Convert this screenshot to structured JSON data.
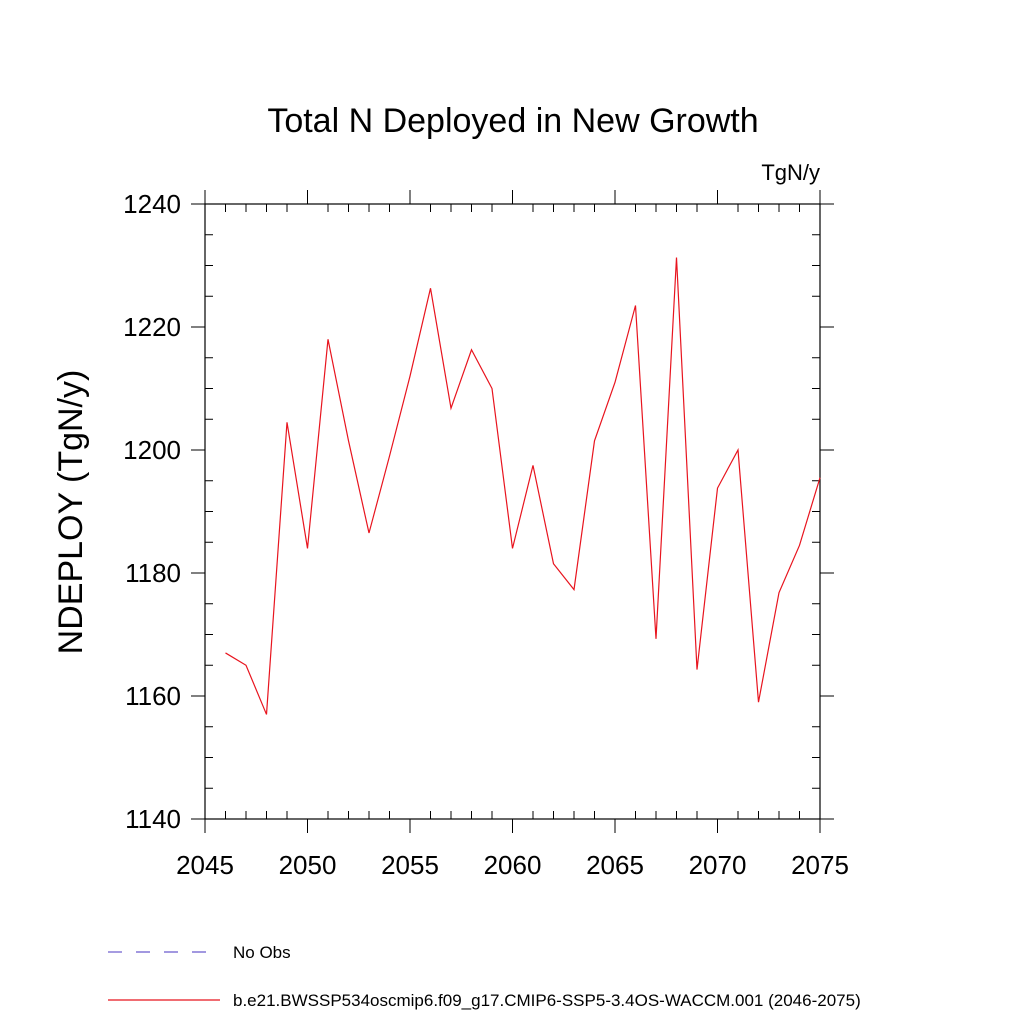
{
  "chart_data": {
    "type": "line",
    "title": "Total N Deployed in New Growth",
    "units_label": "TgN/y",
    "ylabel": "NDEPLOY  (TgN/y)",
    "xlabel": "",
    "xlim": [
      2045,
      2075
    ],
    "ylim": [
      1140,
      1240
    ],
    "xticks": [
      2045,
      2050,
      2055,
      2060,
      2065,
      2070,
      2075
    ],
    "yticks": [
      1140,
      1160,
      1180,
      1200,
      1220,
      1240
    ],
    "grid": false,
    "legend_position": "bottom-left",
    "series": [
      {
        "name": "No Obs",
        "color": "#6a5acd",
        "dash": true,
        "x": [],
        "y": []
      },
      {
        "name": "b.e21.BWSSP534oscmip6.f09_g17.CMIP6-SSP5-3.4OS-WACCM.001 (2046-2075)",
        "color": "#e8141e",
        "dash": false,
        "x": [
          2046,
          2047,
          2048,
          2049,
          2050,
          2051,
          2052,
          2053,
          2054,
          2055,
          2056,
          2057,
          2058,
          2059,
          2060,
          2061,
          2062,
          2063,
          2064,
          2065,
          2066,
          2067,
          2068,
          2069,
          2070,
          2071,
          2072,
          2073,
          2074,
          2075
        ],
        "y": [
          1167,
          1165,
          1157,
          1204.5,
          1184,
          1218,
          1201.5,
          1186.5,
          1199,
          1212,
          1226.3,
          1206.8,
          1216.3,
          1210,
          1184,
          1197.5,
          1181.5,
          1177.3,
          1201.5,
          1211,
          1223.5,
          1169.3,
          1231.3,
          1164.3,
          1193.8,
          1200,
          1159,
          1176.8,
          1184.5,
          1195.5
        ]
      }
    ]
  }
}
